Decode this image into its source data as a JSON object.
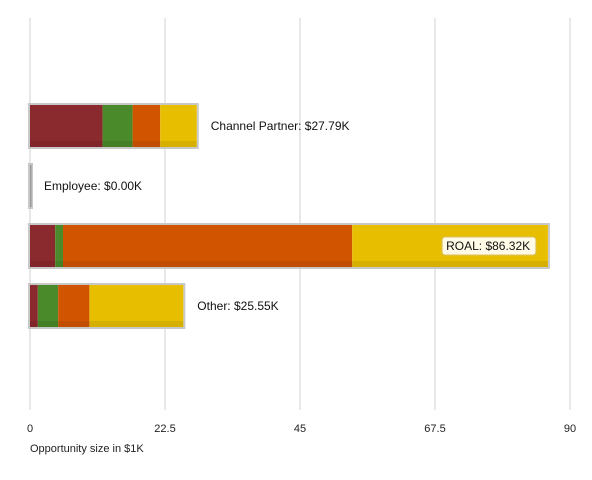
{
  "chart_data": {
    "type": "bar",
    "orientation": "horizontal",
    "stacked": true,
    "xlabel": "Opportunity size in $1K",
    "xlim": [
      0,
      90
    ],
    "xticks": [
      "0",
      "22.5",
      "45",
      "67.5",
      "90"
    ],
    "grid": true,
    "categories": [
      "Channel Partner",
      "Employee",
      "ROAL",
      "Other"
    ],
    "bar_labels": [
      "Channel Partner: $27.79K",
      "Employee: $0.00K",
      "ROAL: $86.32K",
      "Other: $25.55K"
    ],
    "totals": [
      27.79,
      0.0,
      86.32,
      25.55
    ],
    "series": [
      {
        "color": "#8b2a2e",
        "values": [
          12.1,
          0.0,
          4.2,
          1.3
        ]
      },
      {
        "color": "#4a8a2a",
        "values": [
          5.0,
          0.0,
          1.3,
          3.4
        ]
      },
      {
        "color": "#d15400",
        "values": [
          4.6,
          0.0,
          48.2,
          5.2
        ]
      },
      {
        "color": "#e8bf00",
        "values": [
          6.09,
          0.0,
          32.62,
          15.65
        ]
      }
    ]
  }
}
